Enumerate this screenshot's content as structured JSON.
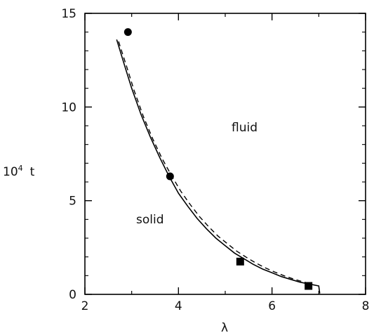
{
  "chart_data": {
    "type": "line",
    "xlabel": "λ",
    "ylabel": "10",
    "ylabel_sup": "4",
    "ylabel_var": "t",
    "xlim": [
      2,
      8
    ],
    "ylim": [
      0,
      15
    ],
    "x_ticks": [
      2,
      4,
      6,
      8
    ],
    "y_ticks": [
      0,
      5,
      10,
      15
    ],
    "x_tick_labels": [
      "2",
      "4",
      "6",
      "8"
    ],
    "y_tick_labels": [
      "0",
      "5",
      "10",
      "15"
    ],
    "grid": false,
    "annotations": [
      "fluid",
      "solid"
    ],
    "series": [
      {
        "style": "solid",
        "color": "#000000",
        "points": [
          [
            2.68,
            13.6
          ],
          [
            2.85,
            12.2
          ],
          [
            3.0,
            11.0
          ],
          [
            3.2,
            9.6
          ],
          [
            3.4,
            8.4
          ],
          [
            3.6,
            7.3
          ],
          [
            3.8,
            6.3
          ],
          [
            4.0,
            5.4
          ],
          [
            4.2,
            4.7
          ],
          [
            4.4,
            4.05
          ],
          [
            4.6,
            3.5
          ],
          [
            4.8,
            3.0
          ],
          [
            5.0,
            2.6
          ],
          [
            5.2,
            2.2
          ],
          [
            5.4,
            1.9
          ],
          [
            5.6,
            1.6
          ],
          [
            5.8,
            1.35
          ],
          [
            6.0,
            1.15
          ],
          [
            6.2,
            0.95
          ],
          [
            6.4,
            0.8
          ],
          [
            6.6,
            0.65
          ],
          [
            6.8,
            0.55
          ],
          [
            7.0,
            0.45
          ],
          [
            7.02,
            0.05
          ]
        ]
      },
      {
        "style": "dashed",
        "color": "#000000",
        "points": [
          [
            2.72,
            13.5
          ],
          [
            2.9,
            12.1
          ],
          [
            3.05,
            10.9
          ],
          [
            3.25,
            9.5
          ],
          [
            3.45,
            8.3
          ],
          [
            3.65,
            7.25
          ],
          [
            3.85,
            6.35
          ],
          [
            4.05,
            5.5
          ],
          [
            4.25,
            4.8
          ],
          [
            4.45,
            4.15
          ],
          [
            4.65,
            3.6
          ],
          [
            4.85,
            3.1
          ],
          [
            5.05,
            2.7
          ],
          [
            5.25,
            2.3
          ],
          [
            5.45,
            1.98
          ],
          [
            5.65,
            1.68
          ],
          [
            5.85,
            1.42
          ],
          [
            6.05,
            1.2
          ],
          [
            6.25,
            1.0
          ],
          [
            6.45,
            0.83
          ],
          [
            6.65,
            0.68
          ],
          [
            6.85,
            0.55
          ]
        ]
      }
    ],
    "markers": [
      {
        "shape": "circle",
        "x": 2.92,
        "y": 14.0
      },
      {
        "shape": "circle",
        "x": 3.82,
        "y": 6.3
      },
      {
        "shape": "square",
        "x": 5.32,
        "y": 1.75
      },
      {
        "shape": "square",
        "x": 6.78,
        "y": 0.45
      }
    ]
  }
}
